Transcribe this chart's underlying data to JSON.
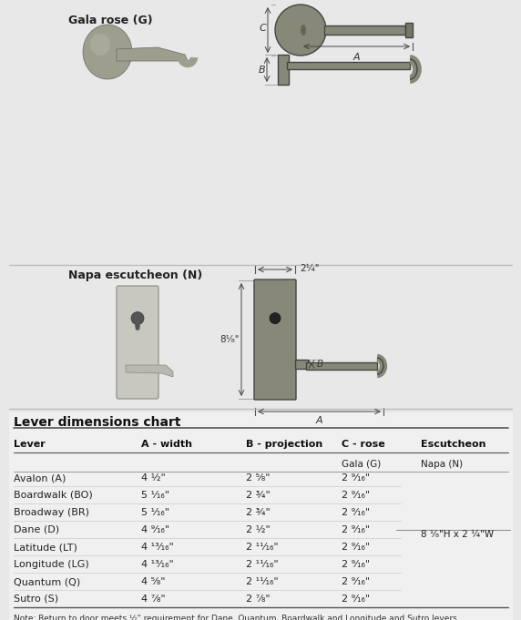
{
  "bg_color": "#e8e8e8",
  "white_panel_color": "#ffffff",
  "title_top": "Lever dimensions chart",
  "table_headers": [
    "Lever",
    "A - width",
    "B - projection",
    "C - rose",
    "Escutcheon"
  ],
  "sub_headers": [
    "",
    "",
    "",
    "Gala (G)",
    "Napa (N)"
  ],
  "rows": [
    [
      "Avalon (A)",
      "4 ½\"",
      "2 ⁵⁄₈\"",
      "2 ⁹⁄₁₆\"",
      ""
    ],
    [
      "Boardwalk (BO)",
      "5 ¹⁄₁₆\"",
      "2 ¾\"",
      "2 ⁹⁄₁₆\"",
      ""
    ],
    [
      "Broadway (BR)",
      "5 ¹⁄₁₆\"",
      "2 ¾\"",
      "2 ⁹⁄₁₆\"",
      ""
    ],
    [
      "Dane (D)",
      "4 ⁹⁄₁₆\"",
      "2 ½\"",
      "2 ⁹⁄₁₆\"",
      ""
    ],
    [
      "Latitude (LT)",
      "4 ¹³⁄₁₆\"",
      "2 ¹¹⁄₁₆\"",
      "2 ⁹⁄₁₆\"",
      ""
    ],
    [
      "Longitude (LG)",
      "4 ¹³⁄₁₆\"",
      "2 ¹¹⁄₁₆\"",
      "2 ⁹⁄₁₆\"",
      ""
    ],
    [
      "Quantum (Q)",
      "4 ⁵⁄₈\"",
      "2 ¹¹⁄₁₆\"",
      "2 ⁹⁄₁₆\"",
      ""
    ],
    [
      "Sutro (S)",
      "4 ⁷⁄₈\"",
      "2 ⁷⁄₈\"",
      "2 ⁹⁄₁₆\"",
      ""
    ]
  ],
  "escutcheon_note": "8 ¹⁄₈\"H x 2 ¼\"W",
  "escutcheon_note_row": 3,
  "note_text": "Note: Return to door meets ½\" requirement for Dane, Quantum, Boardwalk and Longitude and Sutro levers.\n        Specify both lever and rose or escutcheon when ordering. Example: Avalon-Gala specify as AG; Latitude-Napa\n        specify as LTN; Sutro-Gala specify as SG.",
  "gala_label": "Gala rose (G)",
  "napa_label": "Napa escutcheon (N)",
  "dim_21_4": "2¼\"",
  "dim_8_1_8": "8¹⁄₈\"",
  "dim_A": "A",
  "dim_B": "B",
  "dim_C": "C",
  "header_color": "#1a1a1a",
  "row_text_color": "#222222",
  "line_color": "#aaaaaa",
  "note_color": "#333333"
}
